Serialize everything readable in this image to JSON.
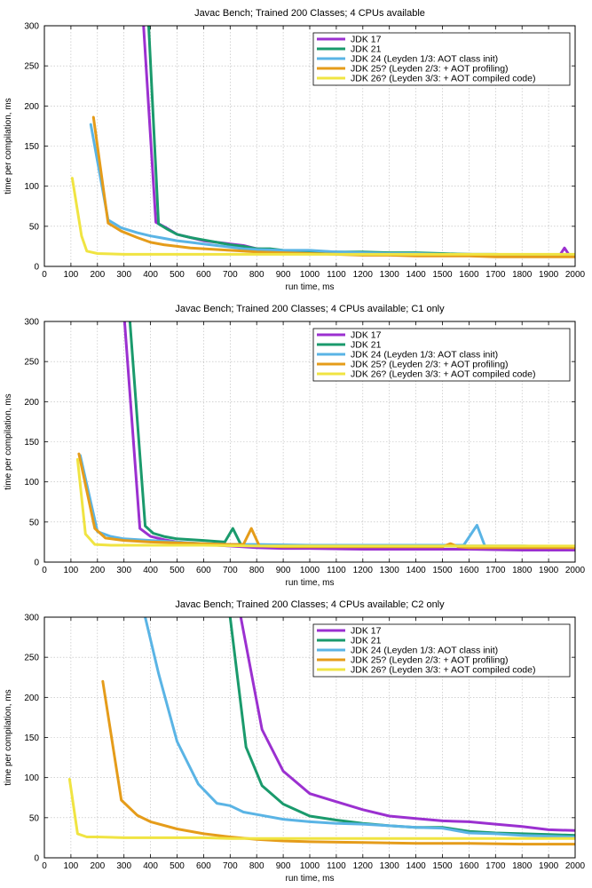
{
  "colors": {
    "jdk17": "#9b30d0",
    "jdk21": "#1a9a6c",
    "jdk24": "#5ab4e5",
    "jdk25": "#e59c1a",
    "jdk26": "#f0e442"
  },
  "chart_data": [
    {
      "type": "line",
      "title": "Javac Bench; Trained 200 Classes; 4 CPUs available",
      "xlabel": "run time, ms",
      "ylabel": "time per compilation, ms",
      "xlim": [
        0,
        2000
      ],
      "ylim": [
        0,
        300
      ],
      "xticks": [
        "0",
        "100",
        "200",
        "300",
        "400",
        "500",
        "600",
        "700",
        "800",
        "900",
        "1000",
        "1100",
        "1200",
        "1300",
        "1400",
        "1500",
        "1600",
        "1700",
        "1800",
        "1900",
        "2000"
      ],
      "yticks": [
        "0",
        "50",
        "100",
        "150",
        "200",
        "250",
        "300"
      ],
      "grid": true,
      "legend_position": "top-right",
      "series": [
        {
          "name": "JDK 17",
          "color_key": "jdk17",
          "x": [
            370,
            420,
            460,
            500,
            550,
            600,
            650,
            700,
            750,
            800,
            850,
            900,
            950,
            1000,
            1100,
            1200,
            1300,
            1400,
            1500,
            1600,
            1700,
            1800,
            1900,
            1940,
            1960,
            1980,
            2000
          ],
          "y": [
            320,
            55,
            48,
            40,
            36,
            32,
            30,
            28,
            26,
            22,
            21,
            19,
            18,
            18,
            17,
            16,
            16,
            15,
            15,
            15,
            14,
            14,
            13,
            13,
            23,
            13,
            13
          ]
        },
        {
          "name": "JDK 21",
          "color_key": "jdk21",
          "x": [
            390,
            430,
            460,
            500,
            550,
            600,
            650,
            700,
            750,
            800,
            850,
            900,
            1000,
            1100,
            1200,
            1300,
            1400,
            1500,
            1600,
            1700,
            1800,
            1900,
            2000
          ],
          "y": [
            320,
            53,
            47,
            40,
            36,
            33,
            30,
            27,
            25,
            22,
            22,
            20,
            19,
            18,
            18,
            17,
            17,
            16,
            15,
            15,
            14,
            14,
            13
          ]
        },
        {
          "name": "JDK 24 (Leyden 1/3: AOT class init)",
          "color_key": "jdk24",
          "x": [
            175,
            240,
            290,
            350,
            400,
            450,
            500,
            550,
            600,
            650,
            700,
            750,
            800,
            900,
            1000,
            1100,
            1200,
            1300,
            1400,
            1500,
            1600,
            1700,
            1800,
            1900,
            2000
          ],
          "y": [
            177,
            58,
            48,
            42,
            38,
            35,
            32,
            30,
            28,
            26,
            24,
            22,
            21,
            20,
            20,
            18,
            17,
            16,
            16,
            15,
            15,
            14,
            14,
            13,
            13
          ]
        },
        {
          "name": "JDK 25? (Leyden 2/3: + AOT profiling)",
          "color_key": "jdk25",
          "x": [
            185,
            240,
            290,
            350,
            400,
            450,
            500,
            550,
            600,
            650,
            700,
            750,
            800,
            900,
            1000,
            1100,
            1200,
            1300,
            1400,
            1500,
            1600,
            1700,
            1800,
            1900,
            2000
          ],
          "y": [
            186,
            54,
            44,
            36,
            30,
            27,
            25,
            23,
            22,
            21,
            20,
            19,
            18,
            17,
            16,
            15,
            14,
            14,
            13,
            13,
            13,
            12,
            12,
            12,
            12
          ]
        },
        {
          "name": "JDK 26? (Leyden 3/3: + AOT compiled code)",
          "color_key": "jdk26",
          "x": [
            105,
            140,
            160,
            200,
            300,
            400,
            500,
            600,
            700,
            800,
            900,
            1000,
            1200,
            1400,
            1600,
            1800,
            2000
          ],
          "y": [
            110,
            38,
            19,
            16,
            15,
            15,
            15,
            15,
            15,
            15,
            15,
            15,
            15,
            15,
            15,
            15,
            15
          ]
        }
      ]
    },
    {
      "type": "line",
      "title": "Javac Bench; Trained 200 Classes; 4 CPUs available; C1 only",
      "xlabel": "run time, ms",
      "ylabel": "time per compilation, ms",
      "xlim": [
        0,
        2000
      ],
      "ylim": [
        0,
        300
      ],
      "xticks": [
        "0",
        "100",
        "200",
        "300",
        "400",
        "500",
        "600",
        "700",
        "800",
        "900",
        "1000",
        "1100",
        "1200",
        "1300",
        "1400",
        "1500",
        "1600",
        "1700",
        "1800",
        "1900",
        "2000"
      ],
      "yticks": [
        "0",
        "50",
        "100",
        "150",
        "200",
        "250",
        "300"
      ],
      "grid": true,
      "legend_position": "top-right",
      "series": [
        {
          "name": "JDK 17",
          "color_key": "jdk17",
          "x": [
            300,
            360,
            400,
            450,
            500,
            600,
            700,
            800,
            900,
            1000,
            1200,
            1400,
            1600,
            1800,
            2000
          ],
          "y": [
            310,
            42,
            32,
            28,
            25,
            22,
            20,
            18,
            17,
            17,
            16,
            16,
            16,
            15,
            15
          ]
        },
        {
          "name": "JDK 21",
          "color_key": "jdk21",
          "x": [
            320,
            380,
            410,
            450,
            500,
            600,
            680,
            710,
            740,
            800,
            900,
            1000,
            1200,
            1400,
            1600,
            1800,
            2000
          ],
          "y": [
            310,
            45,
            36,
            32,
            29,
            27,
            25,
            42,
            22,
            21,
            21,
            21,
            20,
            20,
            20,
            20,
            19
          ]
        },
        {
          "name": "JDK 24 (Leyden 1/3: AOT class init)",
          "color_key": "jdk24",
          "x": [
            135,
            200,
            250,
            300,
            400,
            500,
            600,
            700,
            800,
            1000,
            1200,
            1400,
            1580,
            1630,
            1660,
            1800,
            2000
          ],
          "y": [
            133,
            38,
            32,
            29,
            27,
            25,
            23,
            22,
            22,
            21,
            21,
            21,
            21,
            46,
            20,
            19,
            18
          ]
        },
        {
          "name": "JDK 25? (Leyden 2/3: + AOT profiling)",
          "color_key": "jdk25",
          "x": [
            130,
            190,
            230,
            300,
            400,
            500,
            600,
            700,
            750,
            780,
            810,
            900,
            1000,
            1200,
            1400,
            1500,
            1530,
            1560,
            1600,
            1800,
            2000
          ],
          "y": [
            135,
            42,
            30,
            27,
            25,
            24,
            23,
            22,
            22,
            42,
            20,
            19,
            19,
            19,
            19,
            19,
            23,
            19,
            18,
            18,
            18
          ]
        },
        {
          "name": "JDK 26? (Leyden 3/3: + AOT compiled code)",
          "color_key": "jdk26",
          "x": [
            125,
            155,
            190,
            250,
            400,
            600,
            800,
            1000,
            1200,
            1400,
            1600,
            1800,
            2000
          ],
          "y": [
            128,
            35,
            22,
            21,
            21,
            21,
            20,
            20,
            20,
            20,
            20,
            20,
            20
          ]
        }
      ]
    },
    {
      "type": "line",
      "title": "Javac Bench; Trained 200 Classes; 4 CPUs available; C2 only",
      "xlabel": "run time, ms",
      "ylabel": "time per compilation, ms",
      "xlim": [
        0,
        2000
      ],
      "ylim": [
        0,
        300
      ],
      "xticks": [
        "0",
        "100",
        "200",
        "300",
        "400",
        "500",
        "600",
        "700",
        "800",
        "900",
        "1000",
        "1100",
        "1200",
        "1300",
        "1400",
        "1500",
        "1600",
        "1700",
        "1800",
        "1900",
        "2000"
      ],
      "yticks": [
        "0",
        "50",
        "100",
        "150",
        "200",
        "250",
        "300"
      ],
      "grid": true,
      "legend_position": "top-right",
      "series": [
        {
          "name": "JDK 17",
          "color_key": "jdk17",
          "x": [
            740,
            820,
            900,
            1000,
            1100,
            1200,
            1300,
            1400,
            1500,
            1600,
            1700,
            1800,
            1900,
            2000
          ],
          "y": [
            300,
            160,
            108,
            80,
            70,
            60,
            52,
            49,
            46,
            45,
            42,
            39,
            35,
            34
          ]
        },
        {
          "name": "JDK 21",
          "color_key": "jdk21",
          "x": [
            700,
            760,
            820,
            900,
            1000,
            1100,
            1200,
            1300,
            1400,
            1500,
            1600,
            1700,
            1800,
            1900,
            2000
          ],
          "y": [
            300,
            138,
            90,
            67,
            52,
            47,
            43,
            40,
            38,
            38,
            33,
            31,
            30,
            29,
            28
          ]
        },
        {
          "name": "JDK 24 (Leyden 1/3: AOT class init)",
          "color_key": "jdk24",
          "x": [
            380,
            430,
            500,
            580,
            650,
            700,
            750,
            800,
            900,
            1000,
            1100,
            1200,
            1300,
            1400,
            1500,
            1600,
            1700,
            1800,
            1900,
            2000
          ],
          "y": [
            300,
            230,
            145,
            92,
            68,
            65,
            57,
            54,
            48,
            45,
            43,
            42,
            40,
            38,
            37,
            31,
            30,
            28,
            27,
            26
          ]
        },
        {
          "name": "JDK 25? (Leyden 2/3: + AOT profiling)",
          "color_key": "jdk25",
          "x": [
            220,
            290,
            350,
            400,
            500,
            600,
            700,
            800,
            900,
            1000,
            1200,
            1400,
            1600,
            1800,
            2000
          ],
          "y": [
            220,
            72,
            53,
            45,
            36,
            30,
            26,
            23,
            21,
            20,
            19,
            18,
            18,
            17,
            17
          ]
        },
        {
          "name": "JDK 26? (Leyden 3/3: + AOT compiled code)",
          "color_key": "jdk26",
          "x": [
            95,
            125,
            160,
            200,
            300,
            400,
            500,
            600,
            700,
            800,
            1000,
            1200,
            1400,
            1600,
            1800,
            2000
          ],
          "y": [
            98,
            30,
            26,
            26,
            25,
            25,
            25,
            25,
            24,
            24,
            24,
            24,
            24,
            24,
            24,
            24
          ]
        }
      ]
    }
  ]
}
